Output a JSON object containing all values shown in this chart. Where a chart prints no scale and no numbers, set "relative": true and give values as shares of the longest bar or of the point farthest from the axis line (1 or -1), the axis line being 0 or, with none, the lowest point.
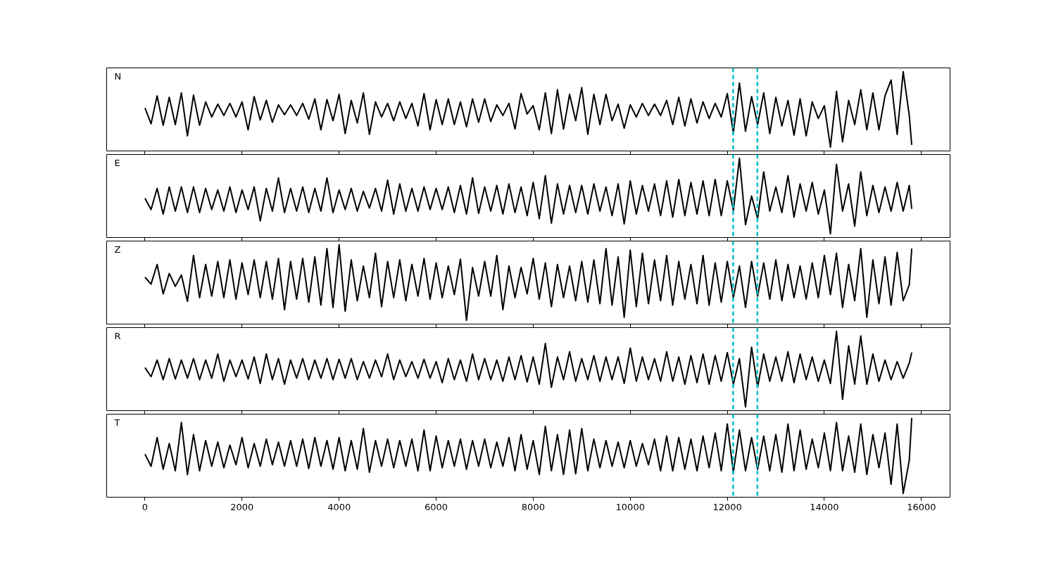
{
  "chart_data": [
    {
      "type": "line",
      "relative": true,
      "xlim": [
        -790,
        16590
      ],
      "xticks": [
        0,
        2000,
        4000,
        6000,
        8000,
        10000,
        12000,
        14000,
        16000
      ],
      "tick_labels": false,
      "annotations": [
        "N"
      ],
      "ref_lines": [
        {
          "axis": "x",
          "value": 12120,
          "color": "#00bfbf",
          "line_style": "dashed"
        },
        {
          "axis": "x",
          "value": 12620,
          "color": "#00bfbf",
          "line_style": "dashed"
        }
      ],
      "x": [
        0,
        125,
        250,
        375,
        500,
        625,
        750,
        875,
        1000,
        1125,
        1250,
        1375,
        1500,
        1625,
        1750,
        1875,
        2000,
        2125,
        2250,
        2375,
        2500,
        2625,
        2750,
        2875,
        3000,
        3125,
        3250,
        3375,
        3500,
        3625,
        3750,
        3875,
        4000,
        4125,
        4250,
        4375,
        4500,
        4625,
        4750,
        4875,
        5000,
        5125,
        5250,
        5375,
        5500,
        5625,
        5750,
        5875,
        6000,
        6125,
        6250,
        6375,
        6500,
        6625,
        6750,
        6875,
        7000,
        7125,
        7250,
        7375,
        7500,
        7625,
        7750,
        7875,
        8000,
        8125,
        8250,
        8375,
        8500,
        8625,
        8750,
        8875,
        9000,
        9125,
        9250,
        9375,
        9500,
        9625,
        9750,
        9875,
        10000,
        10125,
        10250,
        10375,
        10500,
        10625,
        10750,
        10875,
        11000,
        11125,
        11250,
        11375,
        11500,
        11625,
        11750,
        11875,
        12000,
        12125,
        12250,
        12375,
        12500,
        12625,
        12750,
        12875,
        13000,
        13125,
        13250,
        13375,
        13500,
        13625,
        13750,
        13875,
        14000,
        14125,
        14250,
        14375,
        14500,
        14625,
        14750,
        14875,
        15000,
        15125,
        15250,
        15375,
        15500,
        15625,
        15750,
        15800
      ],
      "series": [
        {
          "color": "#000000",
          "values": [
            0.52,
            0.31,
            0.68,
            0.29,
            0.66,
            0.3,
            0.72,
            0.15,
            0.69,
            0.29,
            0.6,
            0.4,
            0.57,
            0.42,
            0.58,
            0.4,
            0.6,
            0.23,
            0.67,
            0.36,
            0.62,
            0.33,
            0.56,
            0.43,
            0.56,
            0.42,
            0.58,
            0.37,
            0.64,
            0.23,
            0.63,
            0.35,
            0.7,
            0.18,
            0.62,
            0.32,
            0.72,
            0.17,
            0.6,
            0.4,
            0.58,
            0.35,
            0.6,
            0.38,
            0.58,
            0.28,
            0.71,
            0.23,
            0.63,
            0.3,
            0.64,
            0.3,
            0.6,
            0.27,
            0.64,
            0.33,
            0.64,
            0.34,
            0.56,
            0.42,
            0.58,
            0.24,
            0.71,
            0.44,
            0.55,
            0.23,
            0.72,
            0.18,
            0.76,
            0.24,
            0.7,
            0.35,
            0.79,
            0.17,
            0.7,
            0.3,
            0.7,
            0.35,
            0.57,
            0.25,
            0.56,
            0.4,
            0.58,
            0.42,
            0.57,
            0.42,
            0.62,
            0.3,
            0.66,
            0.28,
            0.64,
            0.32,
            0.6,
            0.38,
            0.58,
            0.4,
            0.71,
            0.19,
            0.85,
            0.21,
            0.67,
            0.3,
            0.72,
            0.18,
            0.66,
            0.28,
            0.62,
            0.16,
            0.64,
            0.15,
            0.6,
            0.38,
            0.55,
            0.0,
            0.74,
            0.07,
            0.62,
            0.3,
            0.76,
            0.23,
            0.72,
            0.23,
            0.68,
            0.89,
            0.17,
            1.0,
            0.42,
            0.03
          ]
        }
      ]
    },
    {
      "type": "line",
      "relative": true,
      "xlim": [
        -790,
        16590
      ],
      "xticks": [
        0,
        2000,
        4000,
        6000,
        8000,
        10000,
        12000,
        14000,
        16000
      ],
      "tick_labels": false,
      "annotations": [
        "E"
      ],
      "ref_lines": [
        {
          "axis": "x",
          "value": 12120,
          "color": "#00bfbf",
          "line_style": "dashed"
        },
        {
          "axis": "x",
          "value": 12620,
          "color": "#00bfbf",
          "line_style": "dashed"
        }
      ],
      "x": [
        0,
        125,
        250,
        375,
        500,
        625,
        750,
        875,
        1000,
        1125,
        1250,
        1375,
        1500,
        1625,
        1750,
        1875,
        2000,
        2125,
        2250,
        2375,
        2500,
        2625,
        2750,
        2875,
        3000,
        3125,
        3250,
        3375,
        3500,
        3625,
        3750,
        3875,
        4000,
        4125,
        4250,
        4375,
        4500,
        4625,
        4750,
        4875,
        5000,
        5125,
        5250,
        5375,
        5500,
        5625,
        5750,
        5875,
        6000,
        6125,
        6250,
        6375,
        6500,
        6625,
        6750,
        6875,
        7000,
        7125,
        7250,
        7375,
        7500,
        7625,
        7750,
        7875,
        8000,
        8125,
        8250,
        8375,
        8500,
        8625,
        8750,
        8875,
        9000,
        9125,
        9250,
        9375,
        9500,
        9625,
        9750,
        9875,
        10000,
        10125,
        10250,
        10375,
        10500,
        10625,
        10750,
        10875,
        11000,
        11125,
        11250,
        11375,
        11500,
        11625,
        11750,
        11875,
        12000,
        12125,
        12250,
        12375,
        12500,
        12625,
        12750,
        12875,
        13000,
        13125,
        13250,
        13375,
        13500,
        13625,
        13750,
        13875,
        14000,
        14125,
        14250,
        14375,
        14500,
        14625,
        14750,
        14875,
        15000,
        15125,
        15250,
        15375,
        15500,
        15625,
        15750,
        15800
      ],
      "series": [
        {
          "color": "#000000",
          "values": [
            0.47,
            0.32,
            0.6,
            0.26,
            0.62,
            0.3,
            0.62,
            0.28,
            0.62,
            0.28,
            0.6,
            0.32,
            0.58,
            0.3,
            0.62,
            0.28,
            0.58,
            0.32,
            0.62,
            0.17,
            0.6,
            0.3,
            0.74,
            0.28,
            0.6,
            0.3,
            0.62,
            0.28,
            0.6,
            0.3,
            0.74,
            0.28,
            0.58,
            0.32,
            0.6,
            0.3,
            0.56,
            0.34,
            0.6,
            0.3,
            0.71,
            0.26,
            0.66,
            0.3,
            0.6,
            0.3,
            0.62,
            0.32,
            0.6,
            0.32,
            0.62,
            0.28,
            0.64,
            0.26,
            0.74,
            0.27,
            0.62,
            0.3,
            0.64,
            0.26,
            0.66,
            0.28,
            0.62,
            0.24,
            0.68,
            0.2,
            0.77,
            0.14,
            0.66,
            0.26,
            0.64,
            0.28,
            0.64,
            0.26,
            0.66,
            0.3,
            0.62,
            0.24,
            0.66,
            0.13,
            0.7,
            0.26,
            0.64,
            0.3,
            0.66,
            0.24,
            0.7,
            0.22,
            0.72,
            0.24,
            0.68,
            0.26,
            0.7,
            0.24,
            0.72,
            0.24,
            0.7,
            0.31,
            1.0,
            0.12,
            0.5,
            0.2,
            0.82,
            0.3,
            0.62,
            0.28,
            0.77,
            0.22,
            0.66,
            0.3,
            0.68,
            0.26,
            0.58,
            0.0,
            0.92,
            0.3,
            0.66,
            0.1,
            0.82,
            0.24,
            0.64,
            0.28,
            0.62,
            0.3,
            0.68,
            0.3,
            0.64,
            0.33
          ]
        }
      ]
    },
    {
      "type": "line",
      "relative": true,
      "xlim": [
        -790,
        16590
      ],
      "xticks": [
        0,
        2000,
        4000,
        6000,
        8000,
        10000,
        12000,
        14000,
        16000
      ],
      "tick_labels": false,
      "annotations": [
        "Z"
      ],
      "ref_lines": [
        {
          "axis": "x",
          "value": 12120,
          "color": "#00bfbf",
          "line_style": "dashed"
        },
        {
          "axis": "x",
          "value": 12620,
          "color": "#00bfbf",
          "line_style": "dashed"
        }
      ],
      "x": [
        0,
        125,
        250,
        375,
        500,
        625,
        750,
        875,
        1000,
        1125,
        1250,
        1375,
        1500,
        1625,
        1750,
        1875,
        2000,
        2125,
        2250,
        2375,
        2500,
        2625,
        2750,
        2875,
        3000,
        3125,
        3250,
        3375,
        3500,
        3625,
        3750,
        3875,
        4000,
        4125,
        4250,
        4375,
        4500,
        4625,
        4750,
        4875,
        5000,
        5125,
        5250,
        5375,
        5500,
        5625,
        5750,
        5875,
        6000,
        6125,
        6250,
        6375,
        6500,
        6625,
        6750,
        6875,
        7000,
        7125,
        7250,
        7375,
        7500,
        7625,
        7750,
        7875,
        8000,
        8125,
        8250,
        8375,
        8500,
        8625,
        8750,
        8875,
        9000,
        9125,
        9250,
        9375,
        9500,
        9625,
        9750,
        9875,
        10000,
        10125,
        10250,
        10375,
        10500,
        10625,
        10750,
        10875,
        11000,
        11125,
        11250,
        11375,
        11500,
        11625,
        11750,
        11875,
        12000,
        12125,
        12250,
        12375,
        12500,
        12625,
        12750,
        12875,
        13000,
        13125,
        13250,
        13375,
        13500,
        13625,
        13750,
        13875,
        14000,
        14125,
        14250,
        14375,
        14500,
        14625,
        14750,
        14875,
        15000,
        15125,
        15250,
        15375,
        15500,
        15625,
        15750,
        15800
      ],
      "series": [
        {
          "color": "#000000",
          "values": [
            0.57,
            0.48,
            0.74,
            0.35,
            0.62,
            0.45,
            0.6,
            0.25,
            0.86,
            0.3,
            0.74,
            0.32,
            0.78,
            0.3,
            0.8,
            0.28,
            0.76,
            0.34,
            0.8,
            0.3,
            0.78,
            0.28,
            0.82,
            0.14,
            0.78,
            0.28,
            0.82,
            0.24,
            0.84,
            0.2,
            0.95,
            0.17,
            1.0,
            0.12,
            0.8,
            0.26,
            0.72,
            0.3,
            0.89,
            0.18,
            0.78,
            0.3,
            0.8,
            0.26,
            0.74,
            0.32,
            0.82,
            0.28,
            0.76,
            0.3,
            0.72,
            0.34,
            0.81,
            0.0,
            0.7,
            0.32,
            0.78,
            0.32,
            0.86,
            0.14,
            0.72,
            0.3,
            0.7,
            0.35,
            0.82,
            0.28,
            0.76,
            0.18,
            0.74,
            0.3,
            0.72,
            0.26,
            0.78,
            0.24,
            0.8,
            0.22,
            0.95,
            0.2,
            0.84,
            0.04,
            0.93,
            0.18,
            0.89,
            0.22,
            0.8,
            0.26,
            0.86,
            0.2,
            0.78,
            0.28,
            0.74,
            0.22,
            0.86,
            0.2,
            0.76,
            0.24,
            0.78,
            0.3,
            0.72,
            0.17,
            0.78,
            0.32,
            0.76,
            0.28,
            0.8,
            0.26,
            0.74,
            0.3,
            0.72,
            0.28,
            0.76,
            0.3,
            0.86,
            0.34,
            0.89,
            0.17,
            0.74,
            0.26,
            0.95,
            0.04,
            0.8,
            0.22,
            0.84,
            0.2,
            0.9,
            0.26,
            0.47,
            0.95
          ]
        }
      ]
    },
    {
      "type": "line",
      "relative": true,
      "xlim": [
        -790,
        16590
      ],
      "xticks": [
        0,
        2000,
        4000,
        6000,
        8000,
        10000,
        12000,
        14000,
        16000
      ],
      "tick_labels": false,
      "annotations": [
        "R"
      ],
      "ref_lines": [
        {
          "axis": "x",
          "value": 12120,
          "color": "#00bfbf",
          "line_style": "dashed"
        },
        {
          "axis": "x",
          "value": 12620,
          "color": "#00bfbf",
          "line_style": "dashed"
        }
      ],
      "x": [
        0,
        125,
        250,
        375,
        500,
        625,
        750,
        875,
        1000,
        1125,
        1250,
        1375,
        1500,
        1625,
        1750,
        1875,
        2000,
        2125,
        2250,
        2375,
        2500,
        2625,
        2750,
        2875,
        3000,
        3125,
        3250,
        3375,
        3500,
        3625,
        3750,
        3875,
        4000,
        4125,
        4250,
        4375,
        4500,
        4625,
        4750,
        4875,
        5000,
        5125,
        5250,
        5375,
        5500,
        5625,
        5750,
        5875,
        6000,
        6125,
        6250,
        6375,
        6500,
        6625,
        6750,
        6875,
        7000,
        7125,
        7250,
        7375,
        7500,
        7625,
        7750,
        7875,
        8000,
        8125,
        8250,
        8375,
        8500,
        8625,
        8750,
        8875,
        9000,
        9125,
        9250,
        9375,
        9500,
        9625,
        9750,
        9875,
        10000,
        10125,
        10250,
        10375,
        10500,
        10625,
        10750,
        10875,
        11000,
        11125,
        11250,
        11375,
        11500,
        11625,
        11750,
        11875,
        12000,
        12125,
        12250,
        12375,
        12500,
        12625,
        12750,
        12875,
        13000,
        13125,
        13250,
        13375,
        13500,
        13625,
        13750,
        13875,
        14000,
        14125,
        14250,
        14375,
        14500,
        14625,
        14750,
        14875,
        15000,
        15125,
        15250,
        15375,
        15500,
        15625,
        15750,
        15800
      ],
      "series": [
        {
          "color": "#000000",
          "values": [
            0.52,
            0.4,
            0.62,
            0.36,
            0.64,
            0.37,
            0.62,
            0.38,
            0.64,
            0.36,
            0.62,
            0.38,
            0.7,
            0.34,
            0.62,
            0.4,
            0.62,
            0.37,
            0.66,
            0.31,
            0.7,
            0.36,
            0.64,
            0.3,
            0.62,
            0.38,
            0.64,
            0.36,
            0.62,
            0.38,
            0.64,
            0.36,
            0.63,
            0.38,
            0.64,
            0.36,
            0.6,
            0.38,
            0.62,
            0.4,
            0.7,
            0.36,
            0.62,
            0.4,
            0.6,
            0.38,
            0.63,
            0.38,
            0.6,
            0.32,
            0.64,
            0.36,
            0.62,
            0.34,
            0.7,
            0.36,
            0.64,
            0.36,
            0.62,
            0.34,
            0.66,
            0.36,
            0.68,
            0.33,
            0.66,
            0.3,
            0.84,
            0.26,
            0.66,
            0.36,
            0.73,
            0.34,
            0.64,
            0.36,
            0.68,
            0.34,
            0.66,
            0.36,
            0.66,
            0.31,
            0.78,
            0.34,
            0.66,
            0.36,
            0.64,
            0.34,
            0.73,
            0.34,
            0.66,
            0.3,
            0.68,
            0.32,
            0.7,
            0.3,
            0.68,
            0.34,
            0.72,
            0.3,
            0.64,
            0.0,
            0.79,
            0.26,
            0.7,
            0.34,
            0.66,
            0.34,
            0.73,
            0.32,
            0.7,
            0.36,
            0.66,
            0.34,
            0.62,
            0.31,
            1.0,
            0.1,
            0.81,
            0.3,
            0.94,
            0.3,
            0.7,
            0.34,
            0.62,
            0.36,
            0.6,
            0.38,
            0.58,
            0.72
          ]
        }
      ]
    },
    {
      "type": "line",
      "relative": true,
      "xlim": [
        -790,
        16590
      ],
      "xticks": [
        0,
        2000,
        4000,
        6000,
        8000,
        10000,
        12000,
        14000,
        16000
      ],
      "tick_labels": "x",
      "annotations": [
        "T"
      ],
      "ref_lines": [
        {
          "axis": "x",
          "value": 12120,
          "color": "#00bfbf",
          "line_style": "dashed"
        },
        {
          "axis": "x",
          "value": 12620,
          "color": "#00bfbf",
          "line_style": "dashed"
        }
      ],
      "x": [
        0,
        125,
        250,
        375,
        500,
        625,
        750,
        875,
        1000,
        1125,
        1250,
        1375,
        1500,
        1625,
        1750,
        1875,
        2000,
        2125,
        2250,
        2375,
        2500,
        2625,
        2750,
        2875,
        3000,
        3125,
        3250,
        3375,
        3500,
        3625,
        3750,
        3875,
        4000,
        4125,
        4250,
        4375,
        4500,
        4625,
        4750,
        4875,
        5000,
        5125,
        5250,
        5375,
        5500,
        5625,
        5750,
        5875,
        6000,
        6125,
        6250,
        6375,
        6500,
        6625,
        6750,
        6875,
        7000,
        7125,
        7250,
        7375,
        7500,
        7625,
        7750,
        7875,
        8000,
        8125,
        8250,
        8375,
        8500,
        8625,
        8750,
        8875,
        9000,
        9125,
        9250,
        9375,
        9500,
        9625,
        9750,
        9875,
        10000,
        10125,
        10250,
        10375,
        10500,
        10625,
        10750,
        10875,
        11000,
        11125,
        11250,
        11375,
        11500,
        11625,
        11750,
        11875,
        12000,
        12125,
        12250,
        12375,
        12500,
        12625,
        12750,
        12875,
        13000,
        13125,
        13250,
        13375,
        13500,
        13625,
        13750,
        13875,
        14000,
        14125,
        14250,
        14375,
        14500,
        14625,
        14750,
        14875,
        15000,
        15125,
        15250,
        15375,
        15500,
        15625,
        15750,
        15800
      ],
      "series": [
        {
          "color": "#000000",
          "values": [
            0.52,
            0.36,
            0.74,
            0.32,
            0.66,
            0.3,
            0.94,
            0.25,
            0.78,
            0.3,
            0.7,
            0.36,
            0.68,
            0.34,
            0.64,
            0.38,
            0.74,
            0.34,
            0.66,
            0.36,
            0.72,
            0.38,
            0.68,
            0.36,
            0.7,
            0.36,
            0.72,
            0.33,
            0.74,
            0.36,
            0.7,
            0.32,
            0.74,
            0.3,
            0.7,
            0.32,
            0.86,
            0.28,
            0.7,
            0.36,
            0.72,
            0.34,
            0.7,
            0.36,
            0.72,
            0.3,
            0.84,
            0.3,
            0.76,
            0.34,
            0.7,
            0.36,
            0.72,
            0.32,
            0.7,
            0.36,
            0.72,
            0.34,
            0.68,
            0.36,
            0.74,
            0.3,
            0.78,
            0.32,
            0.7,
            0.25,
            0.89,
            0.3,
            0.78,
            0.25,
            0.84,
            0.26,
            0.86,
            0.3,
            0.72,
            0.34,
            0.7,
            0.36,
            0.68,
            0.34,
            0.7,
            0.36,
            0.66,
            0.38,
            0.72,
            0.3,
            0.76,
            0.3,
            0.74,
            0.32,
            0.72,
            0.3,
            0.76,
            0.34,
            0.8,
            0.3,
            0.92,
            0.28,
            0.84,
            0.3,
            0.74,
            0.32,
            0.76,
            0.3,
            0.78,
            0.28,
            0.92,
            0.3,
            0.84,
            0.32,
            0.72,
            0.34,
            0.8,
            0.3,
            0.94,
            0.3,
            0.76,
            0.28,
            0.92,
            0.25,
            0.78,
            0.34,
            0.8,
            0.12,
            0.92,
            0.0,
            0.44,
            1.0
          ]
        }
      ]
    }
  ]
}
